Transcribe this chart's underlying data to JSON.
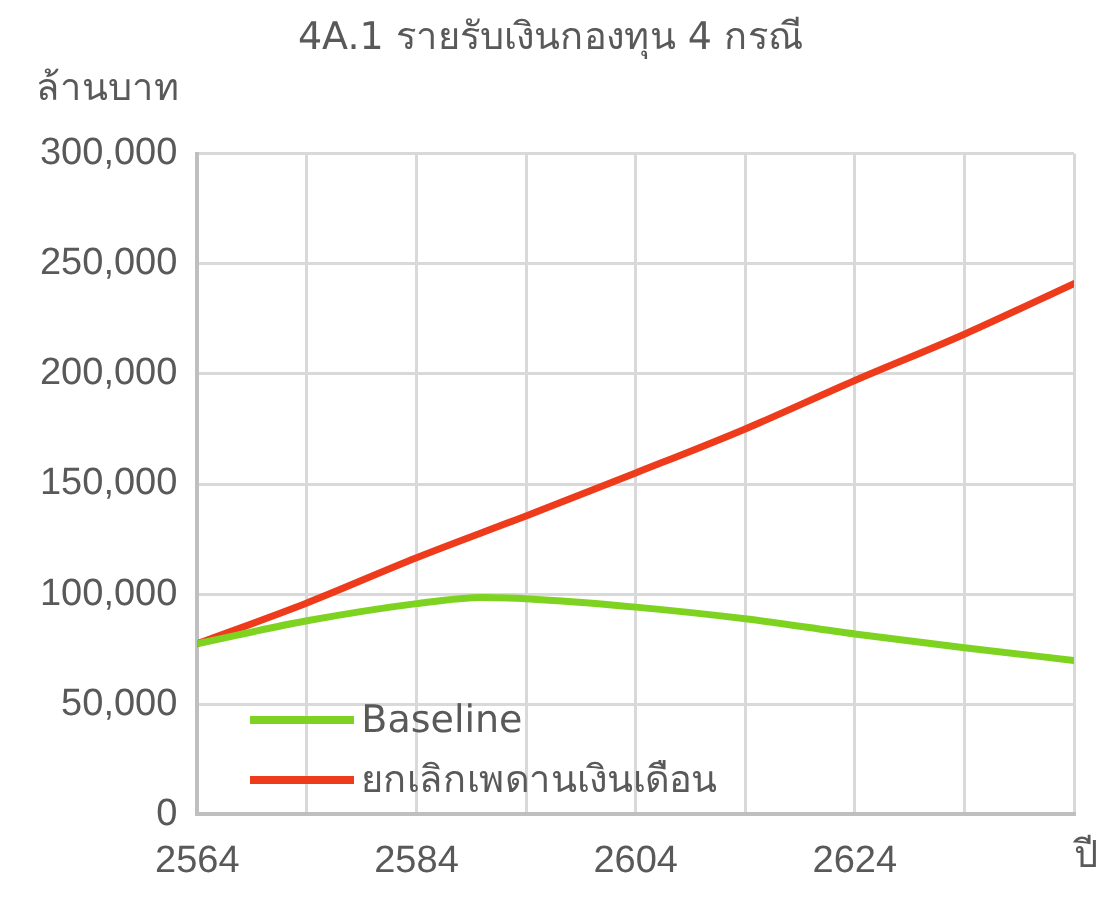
{
  "chart_data": {
    "type": "line",
    "title": "4A.1 รายรับเงินกองทุน 4 กรณี",
    "ylabel": "ล้านบาท",
    "xlabel": "ปี",
    "x": [
      2564,
      2574,
      2584,
      2590,
      2594,
      2604,
      2614,
      2624,
      2634,
      2644
    ],
    "series": [
      {
        "name": "Baseline",
        "color": "#7ed321",
        "values": [
          77500,
          87900,
          95700,
          98500,
          97900,
          94100,
          88800,
          81900,
          75700,
          69900
        ]
      },
      {
        "name": "ยกเลิกเพดานเงินเดือน",
        "color": "#ee3b1c",
        "x": [
          2564,
          2574,
          2584,
          2594,
          2604,
          2614,
          2624,
          2634,
          2644
        ],
        "values": [
          77500,
          96000,
          116500,
          135500,
          155000,
          175000,
          197000,
          218000,
          241000
        ]
      }
    ],
    "xlim": [
      2564,
      2644
    ],
    "xticks": [
      2564,
      {
        "value": 2574,
        "label": null
      },
      2584,
      {
        "value": 2594,
        "label": null
      },
      2604,
      {
        "value": 2614,
        "label": null
      },
      2624,
      {
        "value": 2634,
        "label": null
      },
      {
        "value": 2644,
        "label": null
      }
    ],
    "ylim": [
      0,
      300000
    ],
    "yticks": [
      0,
      {
        "value": 50000,
        "label": "50,000"
      },
      {
        "value": 100000,
        "label": "100,000"
      },
      {
        "value": 150000,
        "label": "150,000"
      },
      {
        "value": 200000,
        "label": "200,000"
      },
      {
        "value": 250000,
        "label": "250,000"
      },
      {
        "value": 300000,
        "label": "300,000"
      }
    ],
    "grid": true,
    "legend": "bottom left",
    "marker": "none",
    "line_style": "solid"
  }
}
